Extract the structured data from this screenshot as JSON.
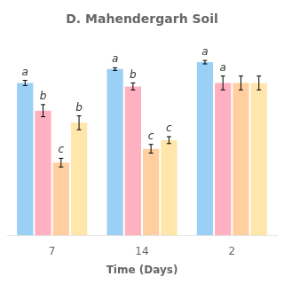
{
  "chart_data": {
    "type": "bar",
    "title": "D. Mahendergarh Soil",
    "xlabel": "Time (Days)",
    "categories": [
      "7",
      "14",
      "2"
    ],
    "series": [
      {
        "values": [
          88,
          96,
          100
        ],
        "errors": [
          1.5,
          0.8,
          1.0
        ],
        "stat_labels": [
          "a",
          "a",
          "a"
        ]
      },
      {
        "values": [
          72,
          86,
          88
        ],
        "errors": [
          3.5,
          2.0,
          4.0
        ],
        "stat_labels": [
          "b",
          "b",
          "a"
        ]
      },
      {
        "values": [
          42,
          50,
          88
        ],
        "errors": [
          2.5,
          2.5,
          4.0
        ],
        "stat_labels": [
          "c",
          "c",
          null
        ]
      },
      {
        "values": [
          65,
          55,
          88
        ],
        "errors": [
          4.0,
          2.0,
          4.0
        ],
        "stat_labels": [
          "b",
          "c",
          null
        ]
      }
    ],
    "ylim": [
      0,
      115
    ],
    "grid": false,
    "tick_labels": "x"
  }
}
